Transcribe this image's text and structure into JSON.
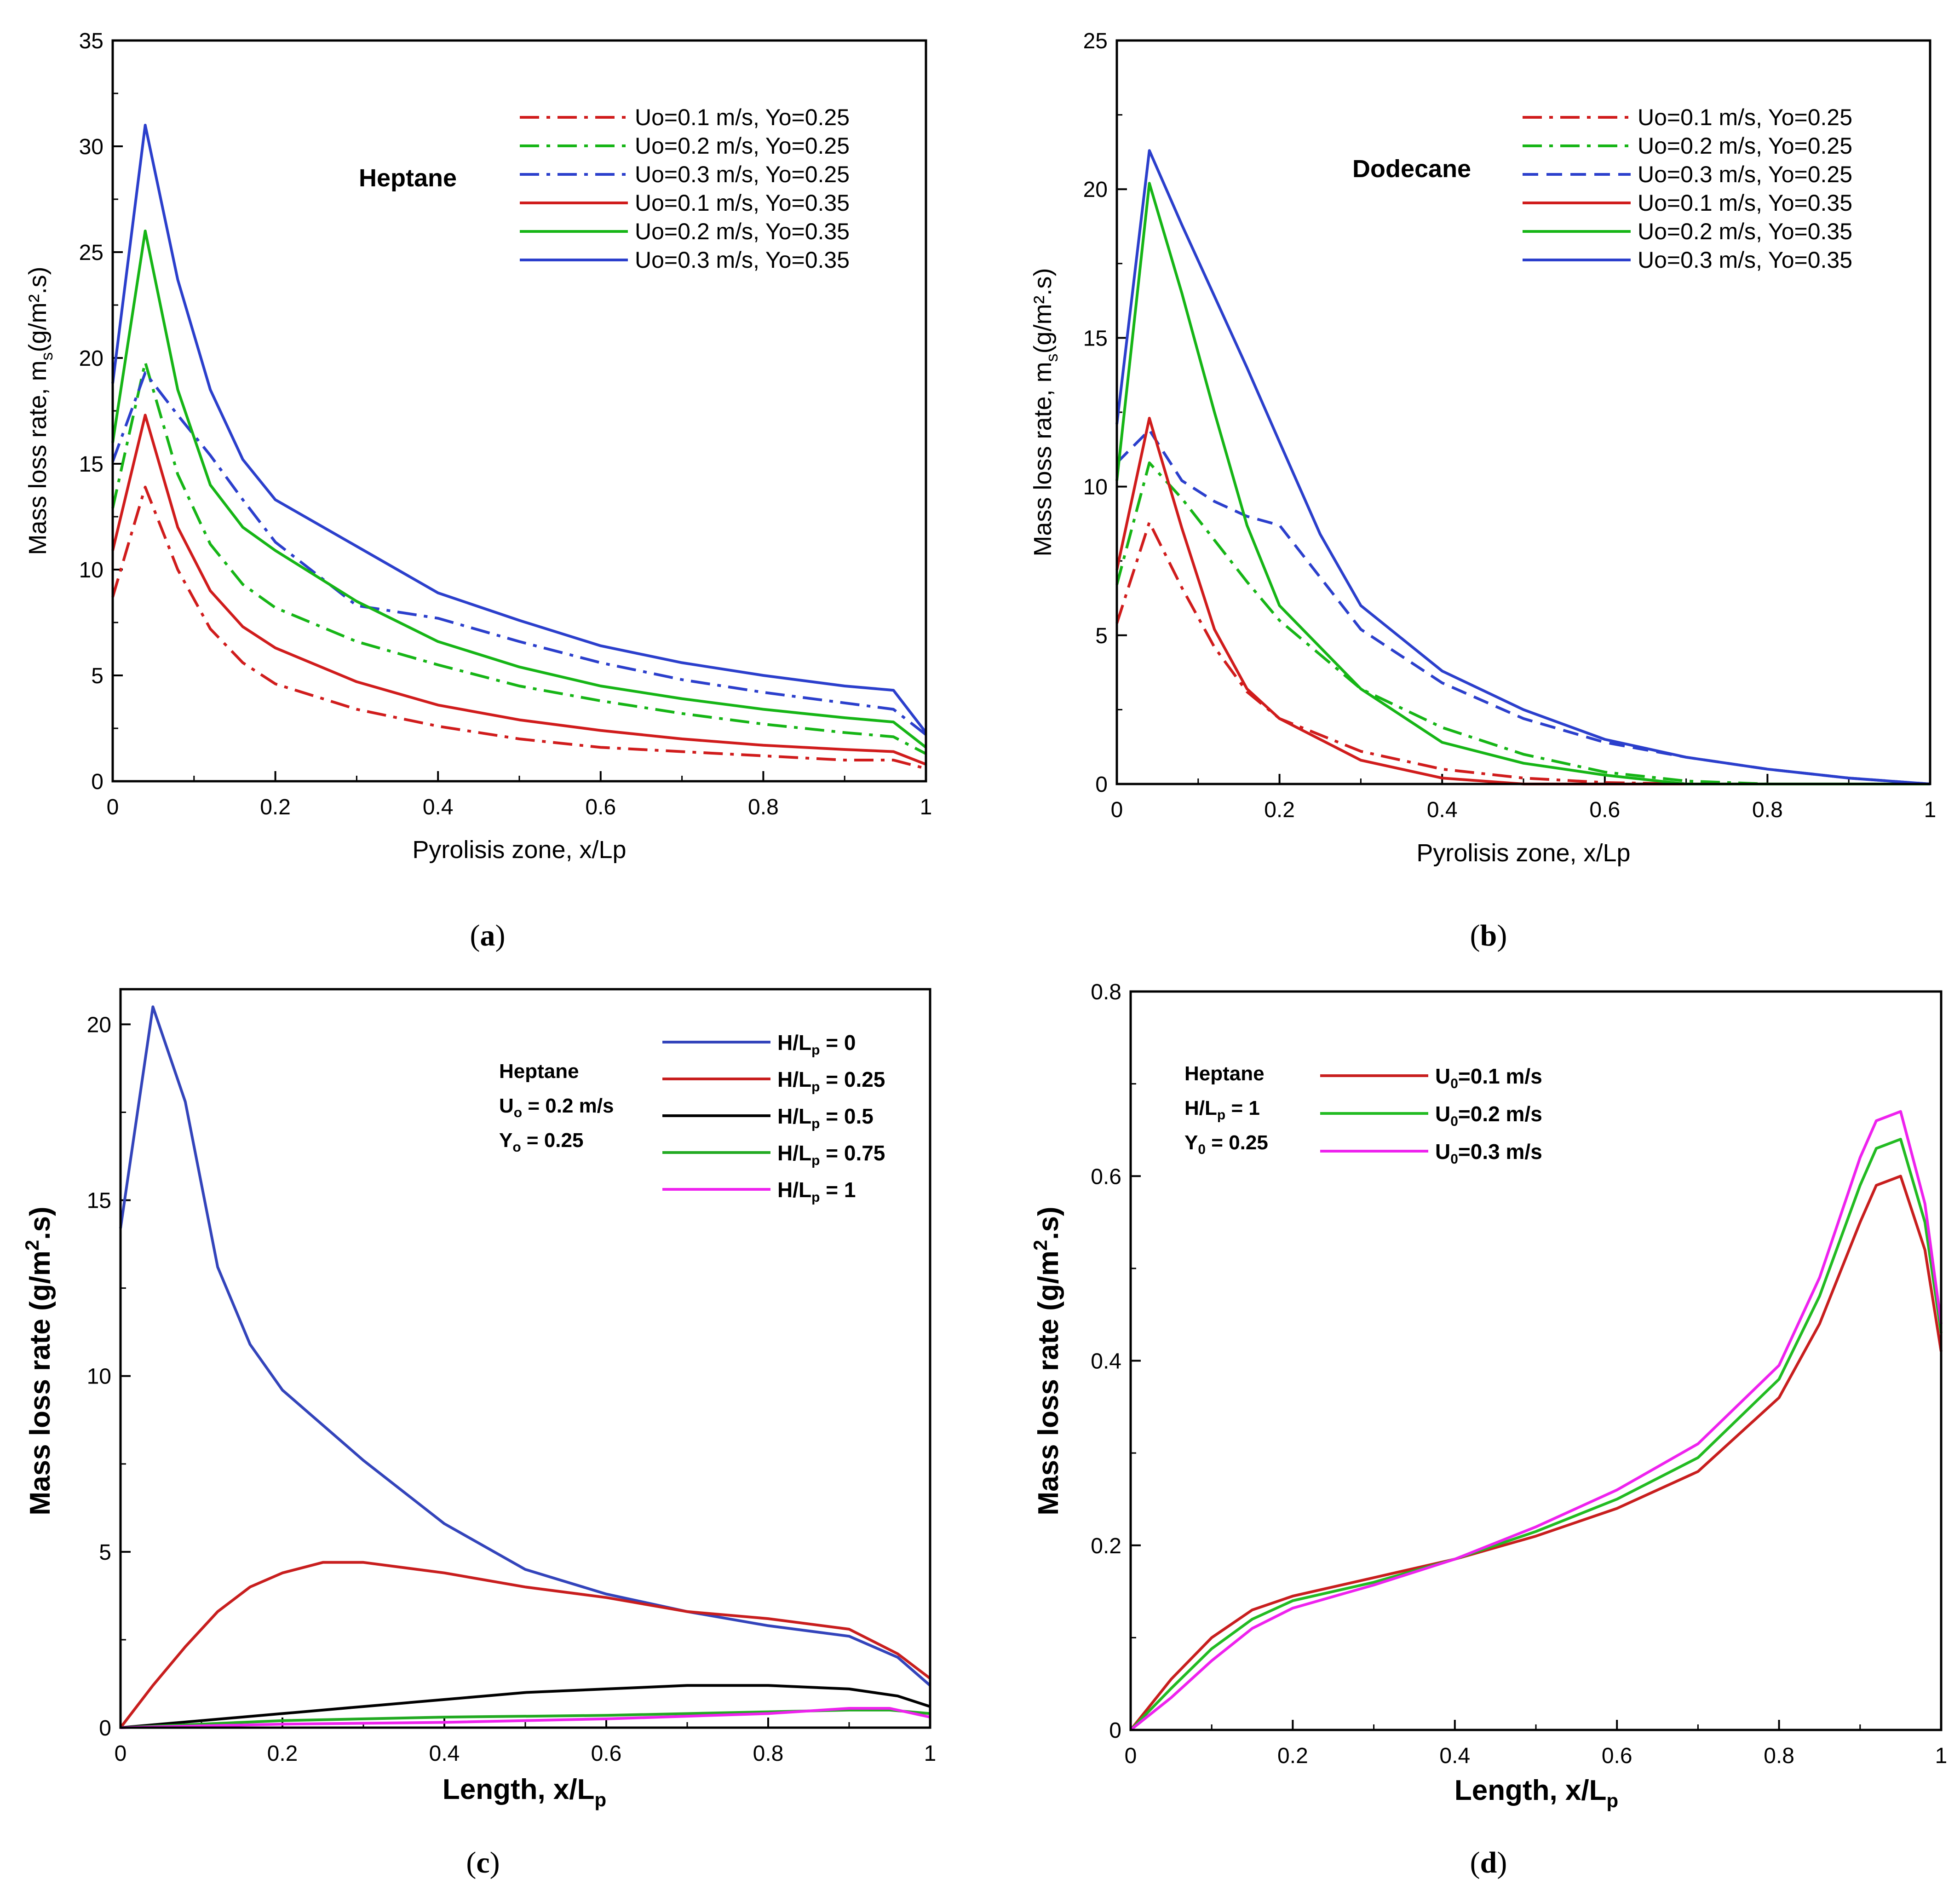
{
  "chart_data": [
    {
      "id": "a",
      "type": "line",
      "caption": "a",
      "annotation": "Heptane",
      "xlabel": "Pyrolisis zone, x/Lp",
      "ylabel": "Mass loss rate, m",
      "ylabel_sub": "s",
      "ylabel_unit": "(g/m².s)",
      "xlim": [
        0,
        1
      ],
      "ylim": [
        0,
        35
      ],
      "xticks": [
        0,
        0.2,
        0.4,
        0.6,
        0.8,
        1
      ],
      "xtick_labels": [
        "0",
        "0.2",
        "0.4",
        "0.6",
        "0.8",
        "1"
      ],
      "yticks": [
        0,
        5,
        10,
        15,
        20,
        25,
        30,
        35
      ],
      "ytick_labels": [
        "0",
        "5",
        "10",
        "15",
        "20",
        "25",
        "30",
        "35"
      ],
      "series": [
        {
          "name": "Uo=0.1 m/s, Yo=0.25",
          "color": "#d01c1c",
          "dash": "dashdot",
          "x": [
            0,
            0.04,
            0.08,
            0.12,
            0.16,
            0.2,
            0.3,
            0.4,
            0.5,
            0.6,
            0.7,
            0.8,
            0.9,
            0.96,
            1
          ],
          "y": [
            8.7,
            13.9,
            10,
            7.2,
            5.6,
            4.6,
            3.4,
            2.6,
            2.0,
            1.6,
            1.4,
            1.2,
            1.0,
            1.0,
            0.6
          ]
        },
        {
          "name": "Uo=0.2 m/s, Yo=0.25",
          "color": "#16b516",
          "dash": "dashdot",
          "x": [
            0,
            0.04,
            0.08,
            0.12,
            0.16,
            0.2,
            0.3,
            0.4,
            0.5,
            0.6,
            0.7,
            0.8,
            0.9,
            0.96,
            1
          ],
          "y": [
            12.9,
            19.8,
            14.5,
            11.2,
            9.3,
            8.2,
            6.6,
            5.5,
            4.5,
            3.8,
            3.2,
            2.7,
            2.3,
            2.1,
            1.3
          ]
        },
        {
          "name": "Uo=0.3 m/s, Yo=0.25",
          "color": "#2b3fcc",
          "dash": "dashdot",
          "x": [
            0,
            0.04,
            0.08,
            0.12,
            0.16,
            0.2,
            0.3,
            0.4,
            0.5,
            0.6,
            0.7,
            0.8,
            0.9,
            0.96,
            1
          ],
          "y": [
            15.1,
            19.3,
            17.3,
            15.4,
            13.3,
            11.3,
            8.3,
            7.7,
            6.6,
            5.6,
            4.8,
            4.2,
            3.7,
            3.4,
            2.2
          ]
        },
        {
          "name": "Uo=0.1 m/s, Yo=0.35",
          "color": "#d01c1c",
          "dash": "solid",
          "x": [
            0,
            0.04,
            0.08,
            0.12,
            0.16,
            0.2,
            0.3,
            0.4,
            0.5,
            0.6,
            0.7,
            0.8,
            0.9,
            0.96,
            1
          ],
          "y": [
            10.9,
            17.3,
            12.0,
            9.0,
            7.3,
            6.3,
            4.7,
            3.6,
            2.9,
            2.4,
            2.0,
            1.7,
            1.5,
            1.4,
            0.8
          ]
        },
        {
          "name": "Uo=0.2 m/s, Yo=0.35",
          "color": "#16b516",
          "dash": "solid",
          "x": [
            0,
            0.04,
            0.08,
            0.12,
            0.16,
            0.2,
            0.3,
            0.4,
            0.5,
            0.6,
            0.7,
            0.8,
            0.9,
            0.96,
            1
          ],
          "y": [
            16.0,
            26.0,
            18.5,
            14.0,
            12.0,
            10.9,
            8.5,
            6.6,
            5.4,
            4.5,
            3.9,
            3.4,
            3.0,
            2.8,
            1.6
          ]
        },
        {
          "name": "Uo=0.3 m/s, Yo=0.35",
          "color": "#2b3fcc",
          "dash": "solid",
          "x": [
            0,
            0.04,
            0.08,
            0.12,
            0.16,
            0.2,
            0.3,
            0.4,
            0.5,
            0.6,
            0.7,
            0.8,
            0.9,
            0.96,
            1
          ],
          "y": [
            18.8,
            31.0,
            23.7,
            18.5,
            15.2,
            13.3,
            11.1,
            8.9,
            7.6,
            6.4,
            5.6,
            5.0,
            4.5,
            4.3,
            2.3
          ]
        }
      ]
    },
    {
      "id": "b",
      "type": "line",
      "caption": "b",
      "annotation": "Dodecane",
      "xlabel": "Pyrolisis zone, x/Lp",
      "ylabel": "Mass loss rate, m",
      "ylabel_sub": "s",
      "ylabel_unit": "(g/m².s)",
      "xlim": [
        0,
        1
      ],
      "ylim": [
        0,
        25
      ],
      "xticks": [
        0,
        0.2,
        0.4,
        0.6,
        0.8,
        1
      ],
      "xtick_labels": [
        "0",
        "0.2",
        "0.4",
        "0.6",
        "0.8",
        "1"
      ],
      "yticks": [
        0,
        5,
        10,
        15,
        20,
        25
      ],
      "ytick_labels": [
        "0",
        "5",
        "10",
        "15",
        "20",
        "25"
      ],
      "series": [
        {
          "name": "Uo=0.1 m/s, Yo=0.25",
          "color": "#d01c1c",
          "dash": "dashdot",
          "x": [
            0,
            0.04,
            0.08,
            0.12,
            0.16,
            0.2,
            0.3,
            0.4,
            0.5,
            0.6,
            0.7,
            0.8,
            1
          ],
          "y": [
            5.4,
            8.8,
            6.6,
            4.6,
            3.1,
            2.2,
            1.1,
            0.5,
            0.2,
            0.05,
            0,
            0,
            0
          ]
        },
        {
          "name": "Uo=0.2 m/s, Yo=0.25",
          "color": "#16b516",
          "dash": "dashdot",
          "x": [
            0,
            0.04,
            0.08,
            0.12,
            0.16,
            0.2,
            0.3,
            0.4,
            0.5,
            0.6,
            0.7,
            0.8,
            1
          ],
          "y": [
            6.7,
            10.8,
            9.6,
            8.2,
            6.8,
            5.5,
            3.2,
            1.9,
            1.0,
            0.4,
            0.1,
            0,
            0
          ]
        },
        {
          "name": "Uo=0.3 m/s, Yo=0.25",
          "color": "#2b3fcc",
          "dash": "dashed",
          "x": [
            0,
            0.04,
            0.08,
            0.12,
            0.16,
            0.2,
            0.3,
            0.4,
            0.5,
            0.6,
            0.7,
            0.8,
            0.9,
            1
          ],
          "y": [
            10.8,
            11.9,
            10.2,
            9.5,
            9.0,
            8.7,
            5.2,
            3.4,
            2.2,
            1.4,
            0.9,
            0.5,
            0.2,
            0
          ]
        },
        {
          "name": "Uo=0.1 m/s, Yo=0.35",
          "color": "#d01c1c",
          "dash": "solid",
          "x": [
            0,
            0.04,
            0.08,
            0.12,
            0.16,
            0.2,
            0.3,
            0.4,
            0.5,
            0.6,
            0.7,
            0.8,
            1
          ],
          "y": [
            7.2,
            12.3,
            8.6,
            5.2,
            3.2,
            2.2,
            0.8,
            0.2,
            0,
            0,
            0,
            0,
            0
          ]
        },
        {
          "name": "Uo=0.2 m/s, Yo=0.35",
          "color": "#16b516",
          "dash": "solid",
          "x": [
            0,
            0.04,
            0.08,
            0.12,
            0.16,
            0.2,
            0.3,
            0.4,
            0.5,
            0.6,
            0.7,
            0.8,
            1
          ],
          "y": [
            10.2,
            20.2,
            16.5,
            12.5,
            8.7,
            6.0,
            3.2,
            1.4,
            0.7,
            0.3,
            0,
            0,
            0
          ]
        },
        {
          "name": "Uo=0.3 m/s, Yo=0.35",
          "color": "#2b3fcc",
          "dash": "solid",
          "x": [
            0,
            0.04,
            0.08,
            0.12,
            0.16,
            0.2,
            0.25,
            0.3,
            0.4,
            0.5,
            0.6,
            0.7,
            0.8,
            0.9,
            1
          ],
          "y": [
            12.1,
            21.3,
            18.8,
            16.4,
            14.0,
            11.5,
            8.4,
            6.0,
            3.8,
            2.5,
            1.5,
            0.9,
            0.5,
            0.2,
            0
          ]
        }
      ]
    },
    {
      "id": "c",
      "type": "line",
      "caption": "c",
      "annotation_lines": [
        "Heptane",
        "U",
        "o",
        " = 0.2 m/s",
        "Y",
        "o",
        " = 0.25"
      ],
      "xlabel": "Length, x/L",
      "xlabel_sub": "p",
      "ylabel": "Mass loss rate (g/m",
      "ylabel_sup": "2",
      "ylabel_tail": ".s)",
      "xlim": [
        0,
        1
      ],
      "ylim": [
        0,
        21
      ],
      "xticks": [
        0,
        0.2,
        0.4,
        0.6,
        0.8,
        1
      ],
      "xtick_labels": [
        "0",
        "0.2",
        "0.4",
        "0.6",
        "0.8",
        "1"
      ],
      "yticks": [
        0,
        5,
        10,
        15,
        20
      ],
      "ytick_labels": [
        "0",
        "5",
        "10",
        "15",
        "20"
      ],
      "series": [
        {
          "name": "H/L",
          "sub": "p",
          "tail": " = 0",
          "color": "#3344bb",
          "dash": "solid",
          "x": [
            0,
            0.04,
            0.08,
            0.12,
            0.16,
            0.2,
            0.3,
            0.4,
            0.5,
            0.6,
            0.7,
            0.8,
            0.9,
            0.96,
            1
          ],
          "y": [
            14.2,
            20.5,
            17.8,
            13.1,
            10.9,
            9.6,
            7.6,
            5.8,
            4.5,
            3.8,
            3.3,
            2.9,
            2.6,
            2.0,
            1.2
          ]
        },
        {
          "name": "H/L",
          "sub": "p",
          "tail": " = 0.25",
          "color": "#c81e1e",
          "dash": "solid",
          "x": [
            0,
            0.04,
            0.08,
            0.12,
            0.16,
            0.2,
            0.25,
            0.3,
            0.4,
            0.5,
            0.6,
            0.7,
            0.8,
            0.9,
            0.96,
            1
          ],
          "y": [
            0,
            1.2,
            2.3,
            3.3,
            4.0,
            4.4,
            4.7,
            4.7,
            4.4,
            4.0,
            3.7,
            3.3,
            3.1,
            2.8,
            2.1,
            1.4
          ]
        },
        {
          "name": "H/L",
          "sub": "p",
          "tail": " = 0.5",
          "color": "#000000",
          "dash": "solid",
          "x": [
            0,
            0.1,
            0.2,
            0.3,
            0.4,
            0.5,
            0.6,
            0.7,
            0.8,
            0.9,
            0.96,
            1
          ],
          "y": [
            0,
            0.2,
            0.4,
            0.6,
            0.8,
            1.0,
            1.1,
            1.2,
            1.2,
            1.1,
            0.9,
            0.6
          ]
        },
        {
          "name": "H/L",
          "sub": "p",
          "tail": " = 0.75",
          "color": "#22aa22",
          "dash": "solid",
          "x": [
            0,
            0.2,
            0.4,
            0.6,
            0.8,
            0.9,
            0.95,
            1
          ],
          "y": [
            0,
            0.2,
            0.3,
            0.35,
            0.45,
            0.5,
            0.5,
            0.4
          ]
        },
        {
          "name": "H/L",
          "sub": "p",
          "tail": " = 1",
          "color": "#ee22ee",
          "dash": "solid",
          "x": [
            0,
            0.2,
            0.4,
            0.6,
            0.8,
            0.9,
            0.95,
            1
          ],
          "y": [
            0,
            0.1,
            0.15,
            0.25,
            0.4,
            0.55,
            0.55,
            0.3
          ]
        }
      ]
    },
    {
      "id": "d",
      "type": "line",
      "caption": "d",
      "annotation_lines": [
        "Heptane",
        "H/L",
        "p",
        " = 1",
        "Y",
        "0",
        " = 0.25"
      ],
      "xlabel": "Length, x/L",
      "xlabel_sub": "p",
      "ylabel": "Mass loss rate (g/m",
      "ylabel_sup": "2",
      "ylabel_tail": ".s)",
      "xlim": [
        0,
        1
      ],
      "ylim": [
        0,
        0.8
      ],
      "xticks": [
        0,
        0.2,
        0.4,
        0.6,
        0.8,
        1
      ],
      "xtick_labels": [
        "0",
        "0.2",
        "0.4",
        "0.6",
        "0.8",
        "1"
      ],
      "yticks": [
        0,
        0.2,
        0.4,
        0.6,
        0.8
      ],
      "ytick_labels": [
        "0",
        "0.2",
        "0.4",
        "0.6",
        "0.8"
      ],
      "series": [
        {
          "name": "U",
          "sub": "0",
          "tail": "=0.1 m/s",
          "color": "#c81e1e",
          "dash": "solid",
          "x": [
            0,
            0.05,
            0.1,
            0.15,
            0.2,
            0.3,
            0.4,
            0.5,
            0.6,
            0.7,
            0.8,
            0.85,
            0.9,
            0.92,
            0.95,
            0.98,
            1
          ],
          "y": [
            0,
            0.055,
            0.1,
            0.13,
            0.145,
            0.165,
            0.185,
            0.21,
            0.24,
            0.28,
            0.36,
            0.44,
            0.55,
            0.59,
            0.6,
            0.52,
            0.41
          ]
        },
        {
          "name": "U",
          "sub": "0",
          "tail": "=0.2 m/s",
          "color": "#22bb22",
          "dash": "solid",
          "x": [
            0,
            0.05,
            0.1,
            0.15,
            0.2,
            0.3,
            0.4,
            0.5,
            0.6,
            0.7,
            0.8,
            0.85,
            0.9,
            0.92,
            0.95,
            0.98,
            1
          ],
          "y": [
            0,
            0.045,
            0.088,
            0.12,
            0.14,
            0.16,
            0.185,
            0.215,
            0.25,
            0.295,
            0.38,
            0.47,
            0.59,
            0.63,
            0.64,
            0.55,
            0.43
          ]
        },
        {
          "name": "U",
          "sub": "0",
          "tail": "=0.3 m/s",
          "color": "#ee22ee",
          "dash": "solid",
          "x": [
            0,
            0.05,
            0.1,
            0.15,
            0.2,
            0.3,
            0.4,
            0.5,
            0.6,
            0.7,
            0.8,
            0.85,
            0.9,
            0.92,
            0.95,
            0.98,
            1
          ],
          "y": [
            0,
            0.035,
            0.075,
            0.11,
            0.132,
            0.157,
            0.185,
            0.22,
            0.26,
            0.31,
            0.395,
            0.49,
            0.62,
            0.66,
            0.67,
            0.57,
            0.44
          ]
        }
      ]
    }
  ]
}
